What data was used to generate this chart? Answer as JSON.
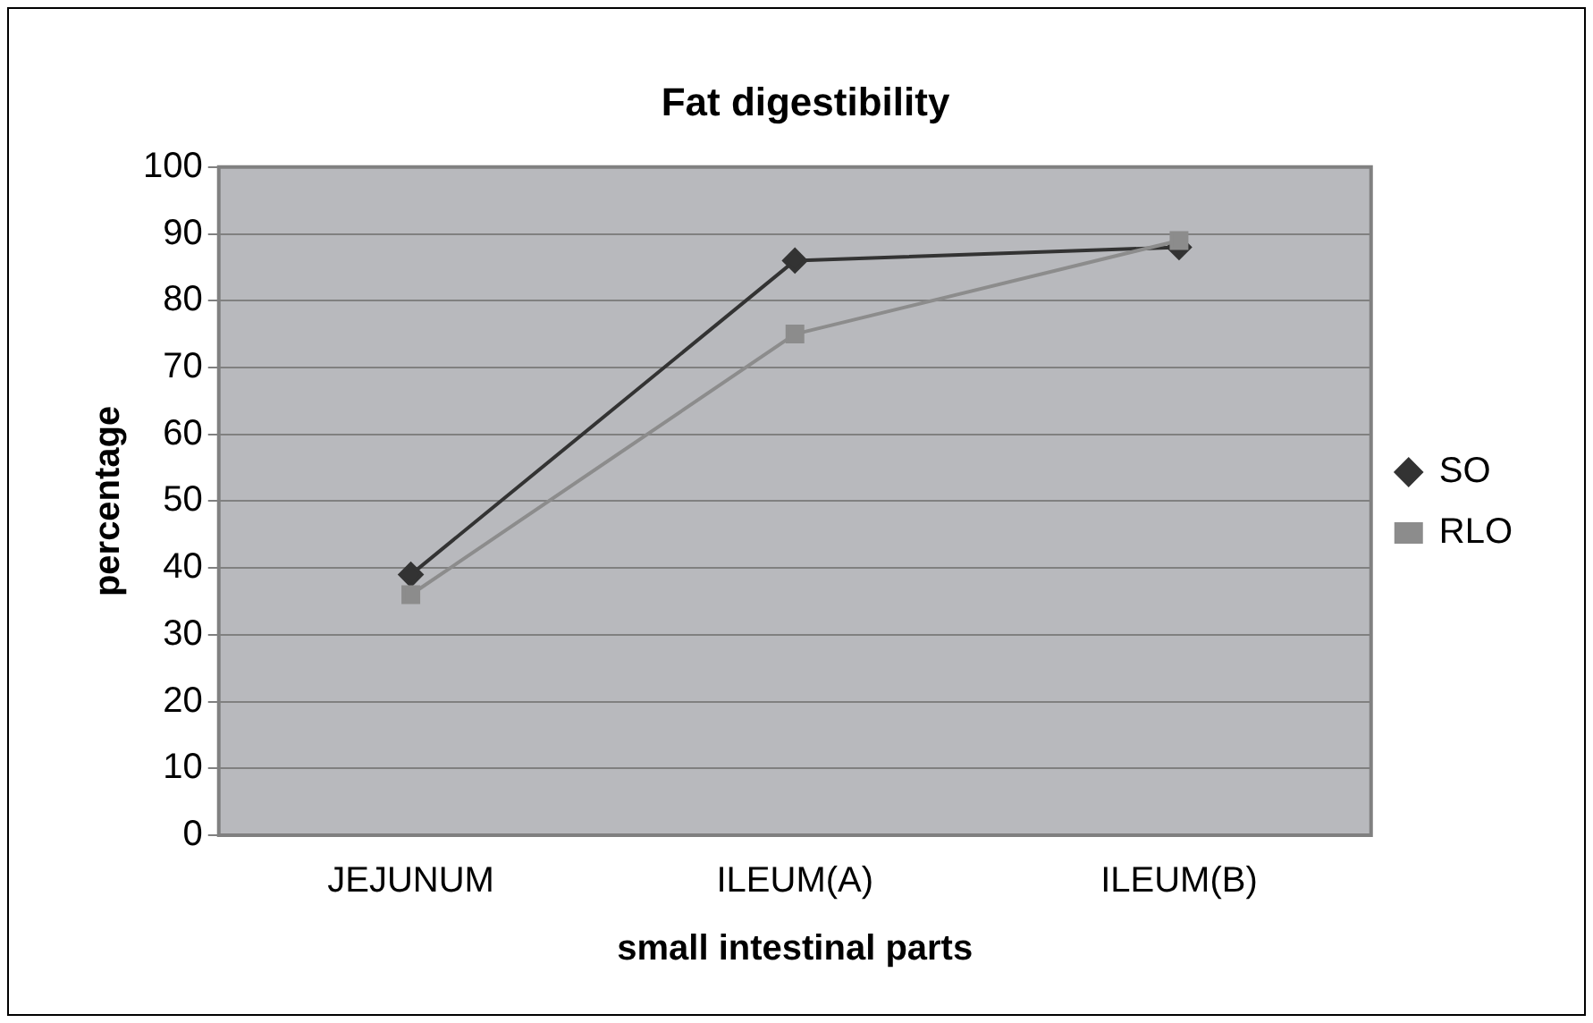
{
  "chart_data": {
    "type": "line",
    "title": "Fat digestibility",
    "xlabel": "small intestinal parts",
    "ylabel": "percentage",
    "categories": [
      "JEJUNUM",
      "ILEUM(A)",
      "ILEUM(B)"
    ],
    "series": [
      {
        "name": "SO",
        "color": "#333333",
        "marker": "diamond",
        "values": [
          39,
          86,
          88
        ]
      },
      {
        "name": "RLO",
        "color": "#8c8c8c",
        "marker": "square",
        "values": [
          36,
          75,
          89
        ]
      }
    ],
    "ylim": [
      0,
      100
    ],
    "yticks": [
      0,
      10,
      20,
      30,
      40,
      50,
      60,
      70,
      80,
      90,
      100
    ],
    "grid": "y",
    "legend": "right"
  }
}
